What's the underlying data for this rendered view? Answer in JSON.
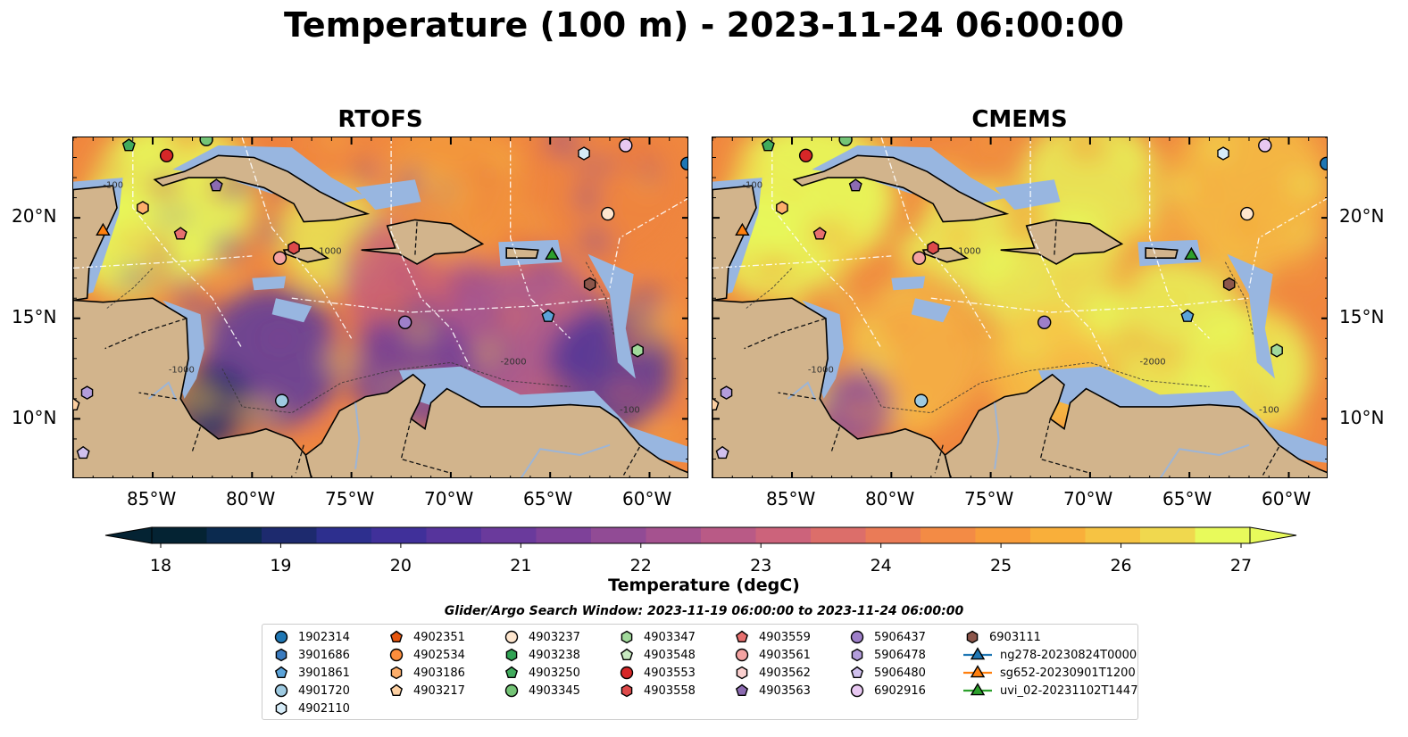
{
  "title": "Temperature (100 m) - 2023-11-24 06:00:00",
  "panels": [
    {
      "id": "rtofs",
      "title": "RTOFS",
      "warmth": 0.45
    },
    {
      "id": "cmems",
      "title": "CMEMS",
      "warmth": 0.72
    }
  ],
  "map": {
    "lon_range": [
      -89,
      -58
    ],
    "lat_range": [
      7,
      24
    ],
    "lon_ticks": [
      "85°W",
      "80°W",
      "75°W",
      "70°W",
      "65°W",
      "60°W"
    ],
    "lat_ticks": [
      "20°N",
      "15°N",
      "10°N"
    ],
    "contour_labels": [
      "-100",
      "-1000",
      "-2000"
    ],
    "colors": {
      "land": "#d2b48c",
      "shelf": "#98b6e0",
      "deep": "#0b2a3c",
      "cold": "#3a2d8a",
      "warm": "#f4a13a",
      "hot": "#e7f75a"
    }
  },
  "colorbar": {
    "label": "Temperature (degC)",
    "min": 18,
    "max": 27,
    "ticks": [
      "18",
      "19",
      "20",
      "21",
      "22",
      "23",
      "24",
      "25",
      "26",
      "27"
    ],
    "colors": [
      "#042333",
      "#0b2a4f",
      "#1d2a6e",
      "#2d2f8e",
      "#40309a",
      "#56349c",
      "#6a3a9c",
      "#7e4199",
      "#914b95",
      "#a5528f",
      "#b95a86",
      "#cc637b",
      "#dc6e6a",
      "#ea7b57",
      "#f38b45",
      "#f89c3a",
      "#f9af3a",
      "#f6c343",
      "#f0d84e",
      "#e8fa5b"
    ]
  },
  "search_window": "Glider/Argo Search Window: 2023-11-19 06:00:00 to 2023-11-24 06:00:00",
  "legend": {
    "items": [
      {
        "label": "1902314",
        "marker": "circle",
        "color": "#1f77b4"
      },
      {
        "label": "3901686",
        "marker": "hexagon",
        "color": "#3a7bbf"
      },
      {
        "label": "3901861",
        "marker": "pentagon",
        "color": "#5ba3d9"
      },
      {
        "label": "4901720",
        "marker": "circle",
        "color": "#9ecae1"
      },
      {
        "label": "4902110",
        "marker": "hexagon",
        "color": "#d6ecf8"
      },
      {
        "label": "4902351",
        "marker": "pentagon",
        "color": "#e6550d"
      },
      {
        "label": "4902534",
        "marker": "circle",
        "color": "#fd8d3c"
      },
      {
        "label": "4903186",
        "marker": "hexagon",
        "color": "#fdae6b"
      },
      {
        "label": "4903217",
        "marker": "pentagon",
        "color": "#fdd0a2"
      },
      {
        "label": "4903237",
        "marker": "circle",
        "color": "#fee6ce"
      },
      {
        "label": "4903238",
        "marker": "hexagon",
        "color": "#31a354"
      },
      {
        "label": "4903250",
        "marker": "pentagon",
        "color": "#41ab5d"
      },
      {
        "label": "4903345",
        "marker": "circle",
        "color": "#74c476"
      },
      {
        "label": "4903347",
        "marker": "hexagon",
        "color": "#a1d99b"
      },
      {
        "label": "4903548",
        "marker": "pentagon",
        "color": "#c7e9c0"
      },
      {
        "label": "4903553",
        "marker": "circle",
        "color": "#d62728"
      },
      {
        "label": "4903558",
        "marker": "hexagon",
        "color": "#de4a4a"
      },
      {
        "label": "4903559",
        "marker": "pentagon",
        "color": "#e7706f"
      },
      {
        "label": "4903561",
        "marker": "circle",
        "color": "#f4a3a2"
      },
      {
        "label": "4903562",
        "marker": "hexagon",
        "color": "#fbd0cf"
      },
      {
        "label": "4903563",
        "marker": "pentagon",
        "color": "#8c6bb1"
      },
      {
        "label": "5906437",
        "marker": "circle",
        "color": "#9e7fc9"
      },
      {
        "label": "5906478",
        "marker": "hexagon",
        "color": "#b39ddb"
      },
      {
        "label": "5906480",
        "marker": "pentagon",
        "color": "#d0c0ee"
      },
      {
        "label": "6902916",
        "marker": "circle",
        "color": "#e8c8f2"
      },
      {
        "label": "6903111",
        "marker": "hexagon",
        "color": "#8c564b"
      },
      {
        "label": "ng278-20230824T0000",
        "marker": "triangle-line",
        "color": "#1f77b4"
      },
      {
        "label": "sg652-20230901T1200",
        "marker": "triangle-line",
        "color": "#ff7f0e"
      },
      {
        "label": "uvi_02-20231102T1447",
        "marker": "triangle-line",
        "color": "#2ca02c"
      }
    ]
  },
  "observations": [
    {
      "id": "4903250",
      "lon": -86.2,
      "lat": 23.6
    },
    {
      "id": "4903553",
      "lon": -84.3,
      "lat": 23.1
    },
    {
      "id": "4903345",
      "lon": -82.3,
      "lat": 23.9
    },
    {
      "id": "4902110",
      "lon": -63.3,
      "lat": 23.2
    },
    {
      "id": "6902916",
      "lon": -61.2,
      "lat": 23.6
    },
    {
      "id": "1902314",
      "lon": -58.1,
      "lat": 22.7
    },
    {
      "id": "4903186",
      "lon": -85.5,
      "lat": 20.5
    },
    {
      "id": "4903563",
      "lon": -81.8,
      "lat": 21.6
    },
    {
      "id": "sg652-20230901T1200",
      "lon": -87.5,
      "lat": 19.4
    },
    {
      "id": "4903559",
      "lon": -83.6,
      "lat": 19.2
    },
    {
      "id": "4903237",
      "lon": -62.1,
      "lat": 20.2
    },
    {
      "id": "4903561",
      "lon": -78.6,
      "lat": 18.0
    },
    {
      "id": "4903558",
      "lon": -77.9,
      "lat": 18.5
    },
    {
      "id": "uvi_02-20231102T1447",
      "lon": -64.9,
      "lat": 18.2
    },
    {
      "id": "6903111",
      "lon": -63.0,
      "lat": 16.7
    },
    {
      "id": "5906437",
      "lon": -72.3,
      "lat": 14.8
    },
    {
      "id": "3901861",
      "lon": -65.1,
      "lat": 15.1
    },
    {
      "id": "4903347",
      "lon": -60.6,
      "lat": 13.4
    },
    {
      "id": "4901720",
      "lon": -78.5,
      "lat": 10.9
    },
    {
      "id": "5906478",
      "lon": -88.3,
      "lat": 11.3
    },
    {
      "id": "4903217",
      "lon": -89.0,
      "lat": 10.7
    },
    {
      "id": "5906480",
      "lon": -88.5,
      "lat": 8.3
    }
  ]
}
